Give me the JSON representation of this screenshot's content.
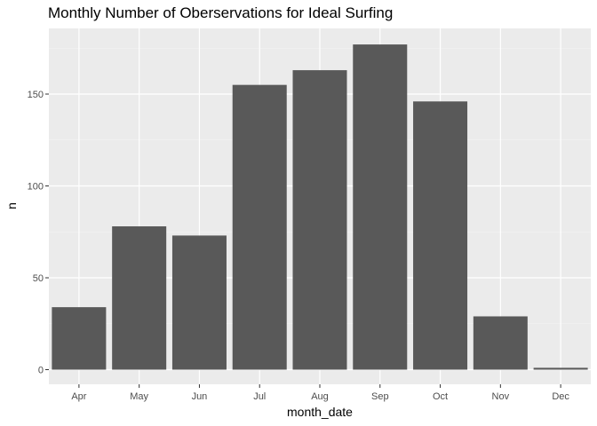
{
  "chart_data": {
    "type": "bar",
    "title": "Monthly Number of Oberservations for Ideal Surfing",
    "xlabel": "month_date",
    "ylabel": "n",
    "categories": [
      "Apr",
      "May",
      "Jun",
      "Jul",
      "Aug",
      "Sep",
      "Oct",
      "Nov",
      "Dec"
    ],
    "values": [
      34,
      78,
      73,
      155,
      163,
      177,
      146,
      29,
      1
    ],
    "ylim": [
      0,
      185
    ],
    "yticks": [
      0,
      50,
      100,
      150
    ],
    "ytick_labels": [
      "0",
      "50",
      "100",
      "150"
    ],
    "grid": true,
    "colors": {
      "bar": "#595959",
      "panel_background": "#ebebeb",
      "grid_major": "#ffffff",
      "grid_minor": "#f5f5f5",
      "tick_mark": "#333333",
      "tick_label": "#4d4d4d",
      "text": "#000000"
    }
  }
}
